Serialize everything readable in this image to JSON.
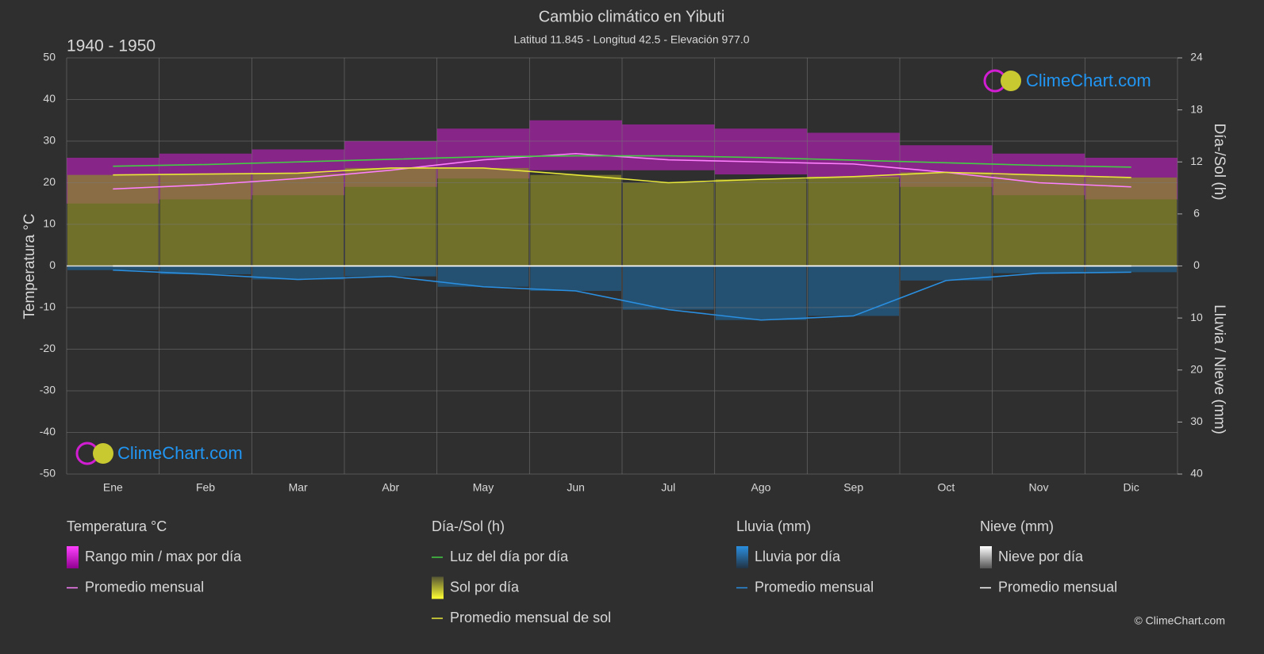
{
  "chart_data": {
    "type": "climate",
    "title": "Cambio climático en Yibuti",
    "subtitle": "Latitud 11.845 - Longitud 42.5 - Elevación 977.0",
    "period": "1940 - 1950",
    "ylabel": "Temperatura °C",
    "y2label": "Día-/Sol (h)",
    "y3label": "Lluvia / Nieve (mm)",
    "categories": [
      "Ene",
      "Feb",
      "Mar",
      "Abr",
      "May",
      "Jun",
      "Jul",
      "Ago",
      "Sep",
      "Oct",
      "Nov",
      "Dic"
    ],
    "ylim": [
      -50,
      50
    ],
    "yticks": [
      -50,
      -40,
      -30,
      -20,
      -10,
      0,
      10,
      20,
      30,
      40,
      50
    ],
    "y2lim": [
      0,
      24
    ],
    "y2ticks": [
      0,
      6,
      12,
      18,
      24
    ],
    "y3lim": [
      0,
      40
    ],
    "y3ticks": [
      0,
      10,
      20,
      30,
      40
    ],
    "grid": true,
    "legend_titles": [
      "Temperatura °C",
      "Día-/Sol (h)",
      "Lluvia (mm)",
      "Nieve (mm)"
    ],
    "series": [
      {
        "name": "Rango min / max por día",
        "kind": "range",
        "axis": "y",
        "color": "#d21ed2",
        "values": [
          [
            15,
            26
          ],
          [
            16,
            27
          ],
          [
            17,
            28
          ],
          [
            19,
            30
          ],
          [
            21,
            33
          ],
          [
            23,
            35
          ],
          [
            23,
            34
          ],
          [
            22,
            33
          ],
          [
            21,
            32
          ],
          [
            19,
            29
          ],
          [
            17,
            27
          ],
          [
            16,
            26
          ]
        ]
      },
      {
        "name": "Promedio mensual",
        "kind": "line",
        "axis": "y",
        "color": "#ff80ff",
        "values": [
          18.5,
          19.5,
          21,
          23,
          25.5,
          27,
          25.5,
          25,
          24.5,
          22.5,
          20,
          19
        ]
      },
      {
        "name": "Luz del día por día",
        "kind": "line",
        "axis": "y2",
        "color": "#44cc44",
        "values": [
          11.5,
          11.7,
          12.0,
          12.3,
          12.6,
          12.7,
          12.7,
          12.5,
          12.2,
          11.9,
          11.6,
          11.4
        ]
      },
      {
        "name": "Sol por día",
        "kind": "bars",
        "axis": "y2",
        "color": "#8c8c2a",
        "values": [
          10.5,
          10.6,
          10.7,
          11.3,
          11.3,
          10.5,
          9.6,
          10.0,
          10.3,
          10.8,
          10.5,
          10.2
        ]
      },
      {
        "name": "Promedio mensual de sol",
        "kind": "line",
        "axis": "y2",
        "color": "#e8e83a",
        "values": [
          10.5,
          10.6,
          10.7,
          11.3,
          11.3,
          10.5,
          9.6,
          10.0,
          10.3,
          10.8,
          10.5,
          10.2
        ]
      },
      {
        "name": "Lluvia por día",
        "kind": "bars",
        "axis": "y3",
        "color": "#1f5f8f",
        "values": [
          0.8,
          1.6,
          2.6,
          2.0,
          4.0,
          4.8,
          8.4,
          10.4,
          9.6,
          2.8,
          1.4,
          1.2
        ]
      },
      {
        "name": "Promedio mensual",
        "kind": "line",
        "axis": "y3",
        "color": "#2a8fe0",
        "values": [
          0.8,
          1.6,
          2.6,
          2.0,
          4.0,
          4.8,
          8.4,
          10.4,
          9.6,
          2.8,
          1.4,
          1.2
        ]
      },
      {
        "name": "Nieve por día",
        "kind": "bars",
        "axis": "y3",
        "color": "#dddddd",
        "values": [
          0,
          0,
          0,
          0,
          0,
          0,
          0,
          0,
          0,
          0,
          0,
          0
        ]
      },
      {
        "name": "Promedio mensual",
        "kind": "line",
        "axis": "y3",
        "color": "#ffffff",
        "values": [
          0,
          0,
          0,
          0,
          0,
          0,
          0,
          0,
          0,
          0,
          0,
          0
        ]
      }
    ],
    "watermark": "ClimeChart.com",
    "copyright": "© ClimeChart.com"
  }
}
